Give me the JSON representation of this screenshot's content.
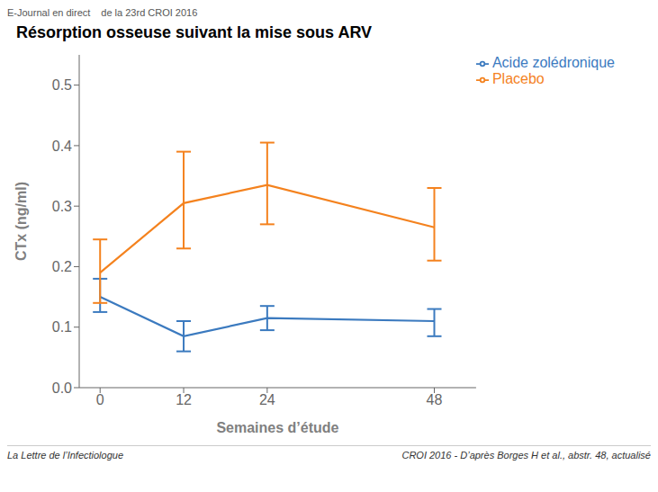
{
  "chart_data": {
    "type": "line",
    "title": "Résorption osseuse suivant la mise sous ARV",
    "xlabel": "Semaines d’étude",
    "ylabel": "CTx (ng/ml)",
    "x": [
      0,
      12,
      24,
      48
    ],
    "xlim": [
      -3,
      54
    ],
    "xticks": [
      0,
      12,
      24,
      48
    ],
    "ylim": [
      0.0,
      0.55
    ],
    "yticks": [
      {
        "value": 0.0,
        "label": "0.0"
      },
      0.1,
      0.2,
      0.3,
      0.4,
      0.5
    ],
    "grid": false,
    "legend": "upper right",
    "series": [
      {
        "name": "Acide zolédronique",
        "color": "#3b7abf",
        "values": [
          0.15,
          0.085,
          0.115,
          0.11
        ],
        "yerr_low": [
          0.025,
          0.025,
          0.02,
          0.025
        ],
        "yerr_high": [
          0.03,
          0.025,
          0.02,
          0.02
        ]
      },
      {
        "name": "Placebo",
        "color": "#f4821e",
        "values": [
          0.19,
          0.305,
          0.335,
          0.265
        ],
        "yerr_low": [
          0.05,
          0.075,
          0.065,
          0.055
        ],
        "yerr_high": [
          0.055,
          0.085,
          0.07,
          0.065
        ]
      }
    ],
    "annotations": [
      "E-Journal en direct",
      "de la 23rd CROI 2016",
      "La Lettre de l’Infectiologue",
      "CROI 2016 - D’après Borges H et al., abstr. 48, actualisé"
    ]
  }
}
